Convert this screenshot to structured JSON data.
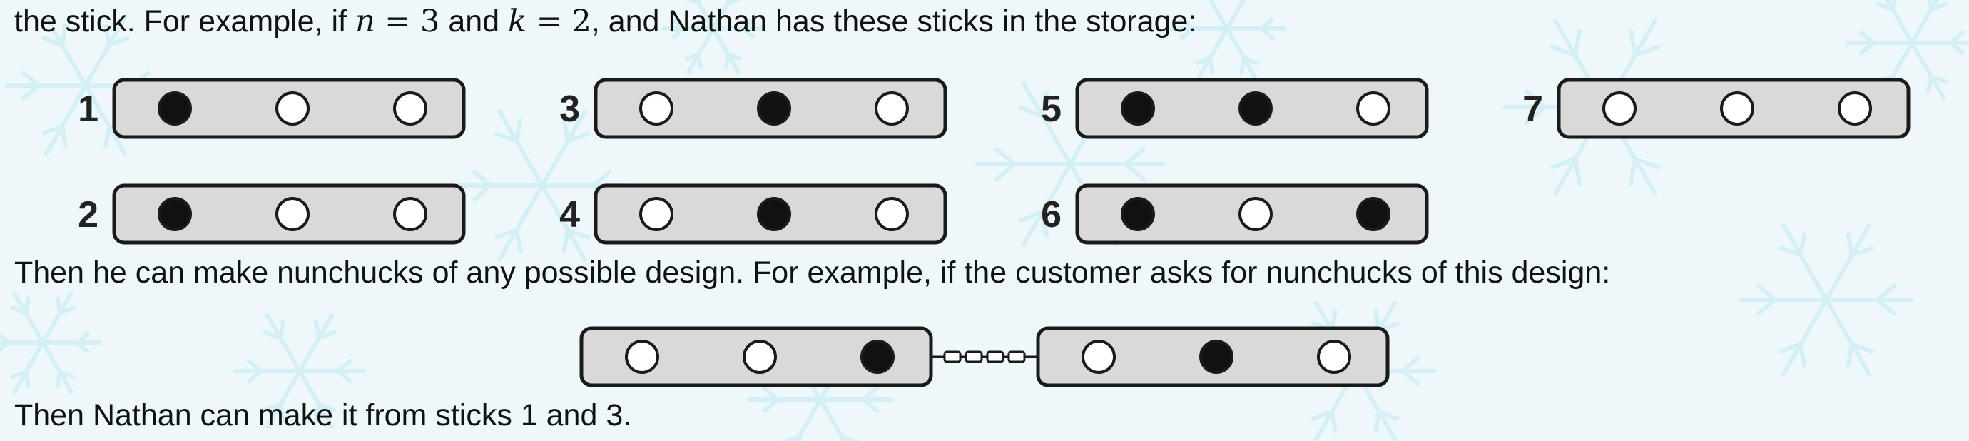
{
  "text": {
    "line1_prefix": "the stick. For example, if ",
    "n_var": "n",
    "eq_n": " = ",
    "n_value": "3",
    "and_word": " and ",
    "k_var": "k",
    "eq_k": " = ",
    "k_value": "2",
    "line1_suffix": ", and Nathan has these sticks in the storage:",
    "line2": "Then he can make nunchucks of any possible design. For example, if the customer asks for nunchucks of this design:",
    "line3": "Then Nathan can make it from sticks 1 and 3."
  },
  "sticks": [
    {
      "label": "1",
      "holes": [
        "filled",
        "empty",
        "empty"
      ]
    },
    {
      "label": "2",
      "holes": [
        "filled",
        "empty",
        "empty"
      ]
    },
    {
      "label": "3",
      "holes": [
        "empty",
        "filled",
        "empty"
      ]
    },
    {
      "label": "4",
      "holes": [
        "empty",
        "filled",
        "empty"
      ]
    },
    {
      "label": "5",
      "holes": [
        "filled",
        "filled",
        "empty"
      ]
    },
    {
      "label": "6",
      "holes": [
        "filled",
        "empty",
        "filled"
      ]
    },
    {
      "label": "7",
      "holes": [
        "empty",
        "empty",
        "empty"
      ]
    }
  ],
  "nunchuck": {
    "left": [
      "empty",
      "empty",
      "filled"
    ],
    "right": [
      "empty",
      "filled",
      "empty"
    ]
  },
  "colors": {
    "stick_fill": "#d9d9d9",
    "stick_stroke": "#1a1a1a",
    "hole_filled": "#111111",
    "hole_empty": "#ffffff",
    "background": "#eef8fb",
    "snowflake": "#cfeef6"
  }
}
